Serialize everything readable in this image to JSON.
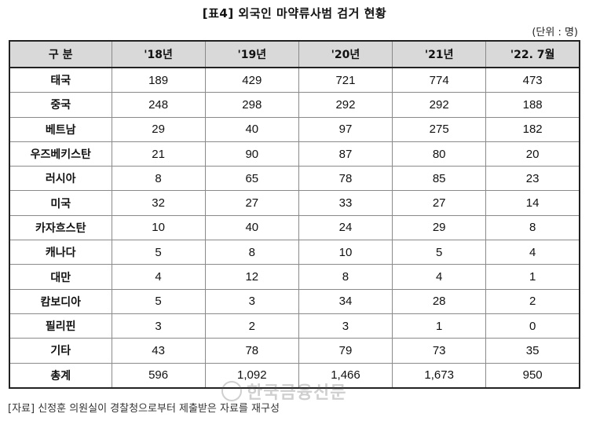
{
  "title": "[표4] 외국인 마약류사범 검거 현황",
  "unit": "(단위 : 명)",
  "table": {
    "headers": [
      "구  분",
      "'18년",
      "'19년",
      "'20년",
      "'21년",
      "'22. 7월"
    ],
    "rows": [
      {
        "label": "태국",
        "values": [
          "189",
          "429",
          "721",
          "774",
          "473"
        ]
      },
      {
        "label": "중국",
        "values": [
          "248",
          "298",
          "292",
          "292",
          "188"
        ]
      },
      {
        "label": "베트남",
        "values": [
          "29",
          "40",
          "97",
          "275",
          "182"
        ]
      },
      {
        "label": "우즈베키스탄",
        "values": [
          "21",
          "90",
          "87",
          "80",
          "20"
        ]
      },
      {
        "label": "러시아",
        "values": [
          "8",
          "65",
          "78",
          "85",
          "23"
        ]
      },
      {
        "label": "미국",
        "values": [
          "32",
          "27",
          "33",
          "27",
          "14"
        ]
      },
      {
        "label": "카자흐스탄",
        "values": [
          "10",
          "40",
          "24",
          "29",
          "8"
        ]
      },
      {
        "label": "캐나다",
        "values": [
          "5",
          "8",
          "10",
          "5",
          "4"
        ]
      },
      {
        "label": "대만",
        "values": [
          "4",
          "12",
          "8",
          "4",
          "1"
        ]
      },
      {
        "label": "캄보디아",
        "values": [
          "5",
          "3",
          "34",
          "28",
          "2"
        ]
      },
      {
        "label": "필리핀",
        "values": [
          "3",
          "2",
          "3",
          "1",
          "0"
        ]
      },
      {
        "label": "기타",
        "values": [
          "43",
          "78",
          "79",
          "73",
          "35"
        ]
      },
      {
        "label": "총계",
        "values": [
          "596",
          "1,092",
          "1,466",
          "1,673",
          "950"
        ]
      }
    ]
  },
  "source": "[자료] 신정훈 의원실이 경찰청으로부터 제출받은 자료를 재구성",
  "watermark": "한국금융신문",
  "colors": {
    "header_bg": "#d9d9d9",
    "border": "#8a8a8a",
    "outer_border": "#222222"
  }
}
